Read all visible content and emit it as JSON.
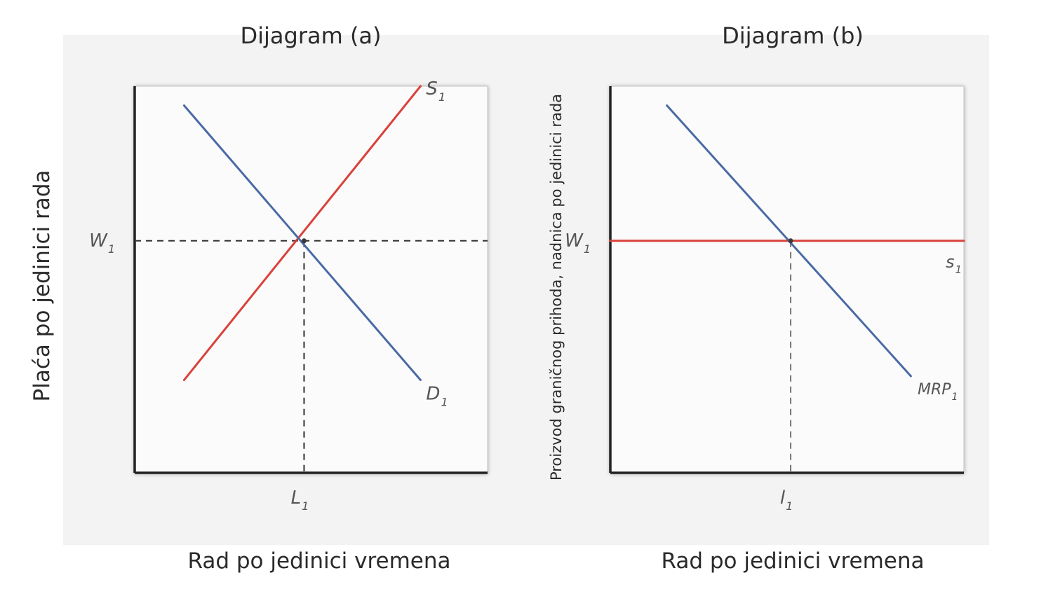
{
  "chart_data": [
    {
      "type": "line",
      "title": "Dijagram (a)",
      "xlabel": "Rad po jedinici vremena",
      "ylabel": "Plaća po jedinici rada",
      "xlim": [
        0,
        10
      ],
      "ylim": [
        0,
        10
      ],
      "grid": false,
      "series": [
        {
          "name": "S1",
          "label_main": "S",
          "label_sub": "1",
          "color": "#d9413a",
          "x": [
            1.4,
            8.1
          ],
          "y": [
            2.4,
            10.0
          ]
        },
        {
          "name": "D1",
          "label_main": "D",
          "label_sub": "1",
          "color": "#4a6aa5",
          "x": [
            1.4,
            8.1
          ],
          "y": [
            9.5,
            2.4
          ]
        }
      ],
      "reference": {
        "x": 4.8,
        "y": 6.0,
        "x_tick_main": "L",
        "x_tick_sub": "1",
        "y_tick_main": "W",
        "y_tick_sub": "1"
      }
    },
    {
      "type": "line",
      "title": "Dijagram (b)",
      "xlabel": "Rad po jedinici vremena",
      "ylabel": "Proizvod graničnog prihoda, nadnica po jedinici rada",
      "xlim": [
        0,
        10
      ],
      "ylim": [
        0,
        10
      ],
      "grid": false,
      "series": [
        {
          "name": "s1",
          "label_main": "s",
          "label_sub": "1",
          "color": "#d9413a",
          "x": [
            0,
            10
          ],
          "y": [
            6.0,
            6.0
          ]
        },
        {
          "name": "MRP1",
          "label_main": "MRP",
          "label_sub": "1",
          "color": "#4a6aa5",
          "x": [
            1.6,
            8.5
          ],
          "y": [
            9.5,
            2.5
          ]
        }
      ],
      "reference": {
        "x": 5.1,
        "y": 6.0,
        "x_tick_main": "l",
        "x_tick_sub": "1",
        "y_tick_main": "W",
        "y_tick_sub": "1"
      }
    }
  ]
}
